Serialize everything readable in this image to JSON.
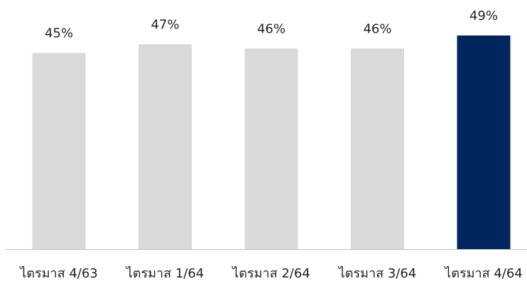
{
  "colors": {
    "default_bar": "#d9d9d9",
    "highlight_bar": "#00265e",
    "axis": "#bfbfbf",
    "text": "#222222"
  },
  "chart_data": {
    "type": "bar",
    "categories": [
      "ไตรมาส 4/63",
      "ไตรมาส 1/64",
      "ไตรมาส 2/64",
      "ไตรมาส 3/64",
      "ไตรมาส 4/64"
    ],
    "values": [
      45,
      47,
      46,
      46,
      49
    ],
    "value_labels": [
      "45%",
      "47%",
      "46%",
      "46%",
      "49%"
    ],
    "highlight_index": 4,
    "ylim": [
      0,
      50
    ],
    "grid": false,
    "legend": "none"
  }
}
